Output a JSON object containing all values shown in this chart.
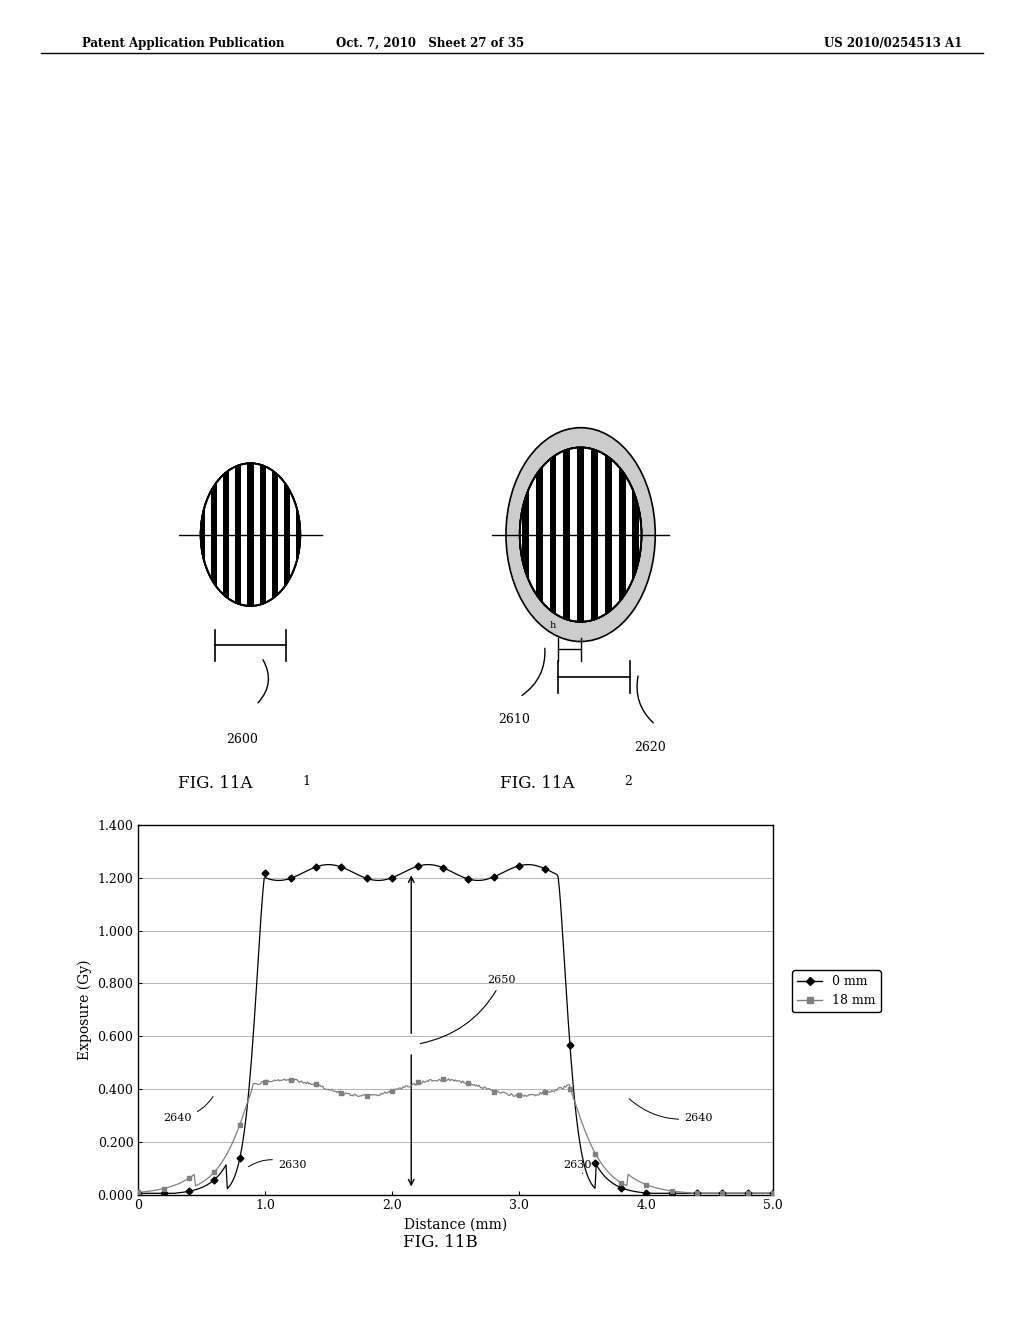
{
  "header_left": "Patent Application Publication",
  "header_mid": "Oct. 7, 2010   Sheet 27 of 35",
  "header_right": "US 2010/0254513 A1",
  "fig_label_1": "FIG. 11A",
  "fig_label_1_sup": "1",
  "fig_label_2": "FIG. 11A",
  "fig_label_2_sup": "2",
  "fig_label_b": "FIG. 11B",
  "label_2600": "2600",
  "label_2610": "2610",
  "label_2620": "2620",
  "label_2630": "2630",
  "label_2640": "2640",
  "label_2650": "2650",
  "graph_xlabel": "Distance (mm)",
  "graph_ylabel": "Exposure (Gy)",
  "graph_ytick_labels": [
    "0.000",
    "0.200",
    "0.400",
    "0.600",
    "0.800",
    "1.000",
    "1.200",
    "1.400"
  ],
  "graph_ytick_vals": [
    0.0,
    0.2,
    0.4,
    0.6,
    0.8,
    1.0,
    1.2,
    1.4
  ],
  "graph_xtick_labels": [
    "0",
    "1.0",
    "2.0",
    "3.0",
    "4.0",
    "5.0"
  ],
  "graph_xtick_vals": [
    0.0,
    1.0,
    2.0,
    3.0,
    4.0,
    5.0
  ],
  "legend_0mm": "0 mm",
  "legend_18mm": "18 mm",
  "bg_color": "#ffffff",
  "line_color_0mm": "#000000",
  "line_color_18mm": "#808080"
}
